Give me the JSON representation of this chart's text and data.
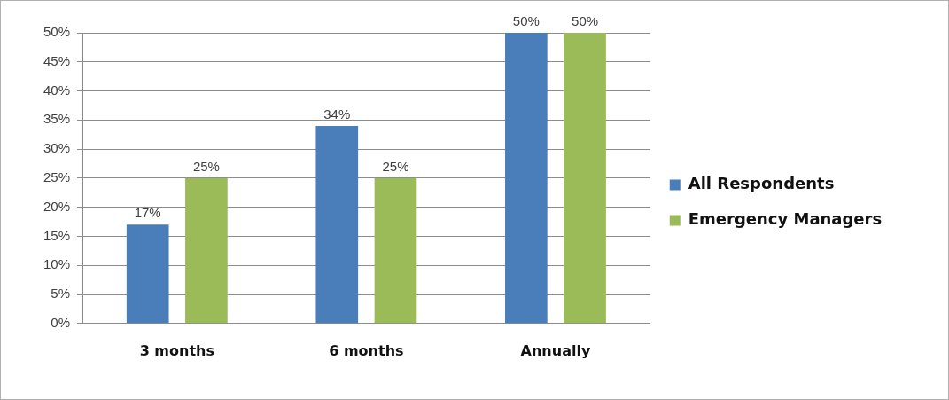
{
  "chart_data": {
    "type": "bar",
    "categories": [
      "3 months",
      "6 months",
      "Annually"
    ],
    "series": [
      {
        "name": "All Respondents",
        "color": "#4a7ebb",
        "values": [
          17,
          34,
          50
        ],
        "value_labels": [
          "17%",
          "34%",
          "50%"
        ]
      },
      {
        "name": "Emergency Managers",
        "color": "#9bbb59",
        "values": [
          25,
          25,
          50
        ],
        "value_labels": [
          "25%",
          "25%",
          "50%"
        ]
      }
    ],
    "ylim": [
      0,
      50
    ],
    "yticks": [
      {
        "value": 0,
        "label": "0%"
      },
      {
        "value": 5,
        "label": "5%"
      },
      {
        "value": 10,
        "label": "10%"
      },
      {
        "value": 15,
        "label": "15%"
      },
      {
        "value": 20,
        "label": "20%"
      },
      {
        "value": 25,
        "label": "25%"
      },
      {
        "value": 30,
        "label": "30%"
      },
      {
        "value": 35,
        "label": "35%"
      },
      {
        "value": 40,
        "label": "40%"
      },
      {
        "value": 45,
        "label": "45%"
      },
      {
        "value": 50,
        "label": "50%"
      }
    ],
    "grid": "y",
    "legend": "right"
  }
}
